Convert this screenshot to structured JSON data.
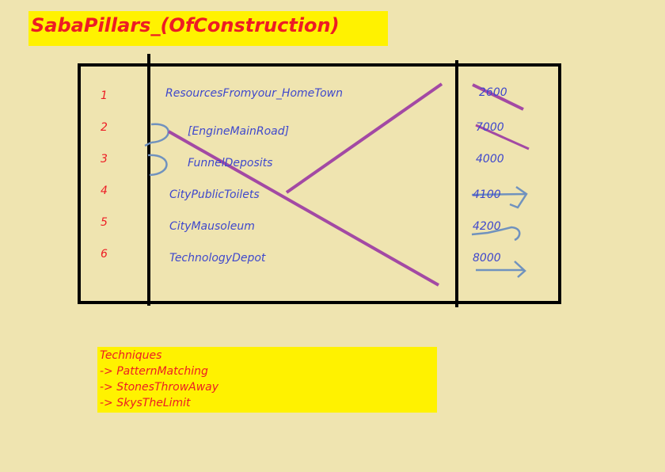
{
  "title": "SabaPillars_(OfConstruction)",
  "rows": [
    {
      "num": "1",
      "label": "ResourcesFromyour_HomeTown",
      "value": "2600"
    },
    {
      "num": "2",
      "label": "[EngineMainRoad]",
      "value": "7000"
    },
    {
      "num": "3",
      "label": "FunnelDeposits",
      "value": "4000"
    },
    {
      "num": "4",
      "label": "CityPublicToilets",
      "value": "4100"
    },
    {
      "num": "5",
      "label": "CityMausoleum",
      "value": "4200"
    },
    {
      "num": "6",
      "label": "TechnologyDepot",
      "value": "8000"
    }
  ],
  "techniques": {
    "heading": "Techniques",
    "items": [
      "-> PatternMatching",
      "-> StonesThrowAway",
      "-> SkysTheLimit"
    ]
  },
  "colors": {
    "background": "#efe4b0",
    "highlight": "#fff200",
    "red_text": "#ed1c24",
    "blue_text": "#3f48cc",
    "purple_stroke": "#a349a4",
    "blue_marks": "#7092be"
  }
}
